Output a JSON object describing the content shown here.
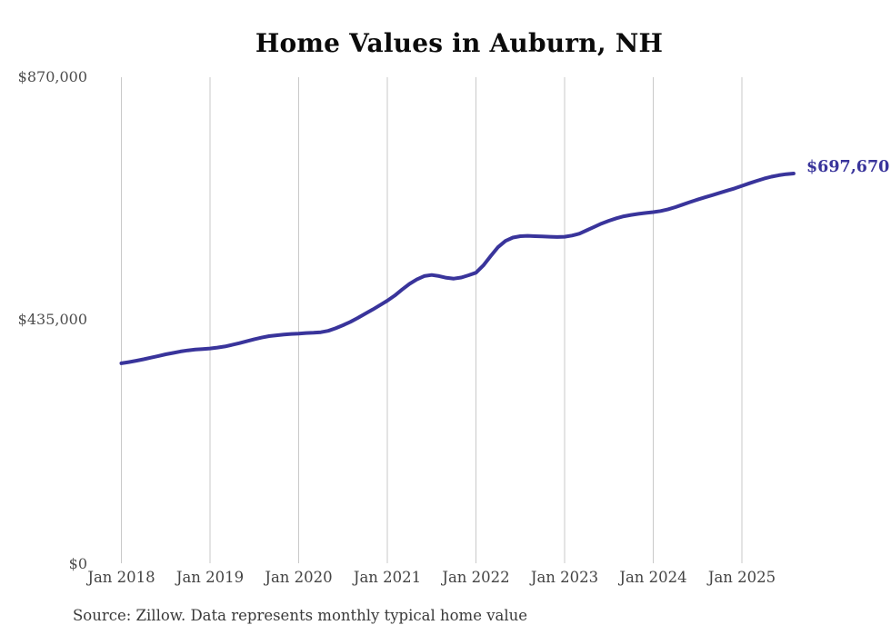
{
  "page": {
    "background_color": "#ffffff"
  },
  "chart_data": {
    "type": "line",
    "title": "Home Values in Auburn, NH",
    "source_note": "Source: Zillow. Data represents monthly typical home value",
    "series_name": "Monthly typical home value",
    "legend": "none",
    "grid": "vertical-only",
    "line_color": "#39349b",
    "gridline_color": "#c9c9c9",
    "axis_label_color": "#4d4d4d",
    "title_color": "#0b0b0b",
    "end_label": "$697,670",
    "end_value": 697670,
    "ylim": [
      0,
      870000
    ],
    "y_ticks": [
      0,
      435000,
      870000
    ],
    "y_tick_labels": [
      "$0",
      "$435,000",
      "$870,000"
    ],
    "x_tick_labels": [
      "Jan 2018",
      "Jan 2019",
      "Jan 2020",
      "Jan 2021",
      "Jan 2022",
      "Jan 2023",
      "Jan 2024",
      "Jan 2025"
    ],
    "x_monthly_start": "2018-01",
    "x_monthly_end": "2025-08",
    "values": [
      358000,
      360000,
      362500,
      365000,
      368000,
      371000,
      374000,
      376500,
      379000,
      381000,
      382500,
      383500,
      384500,
      386000,
      388000,
      391000,
      394000,
      397500,
      401000,
      404000,
      406500,
      408000,
      409500,
      410500,
      411000,
      412000,
      412500,
      413500,
      416000,
      420500,
      426000,
      432000,
      439000,
      446500,
      454000,
      462000,
      470000,
      479000,
      490000,
      500000,
      508000,
      514000,
      516000,
      514000,
      511000,
      509500,
      511500,
      515500,
      520000,
      533000,
      550000,
      566000,
      577000,
      583000,
      585500,
      586000,
      585500,
      585000,
      584500,
      584000,
      584500,
      586500,
      590000,
      596000,
      602000,
      608000,
      613000,
      617500,
      621000,
      623500,
      625500,
      627000,
      628500,
      630500,
      633500,
      637500,
      642000,
      646500,
      651000,
      655000,
      659000,
      663000,
      667000,
      671000,
      675500,
      680000,
      684500,
      688500,
      692000,
      694500,
      696500,
      697670
    ]
  }
}
